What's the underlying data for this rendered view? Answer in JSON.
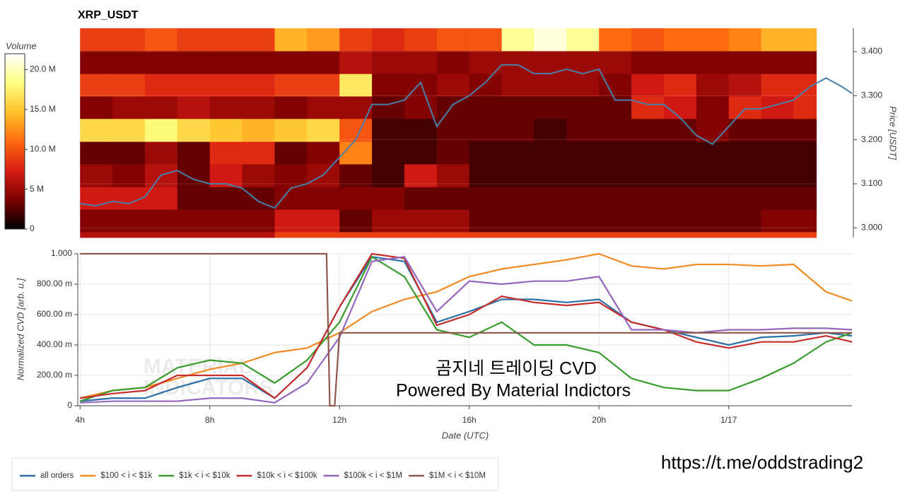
{
  "chart_data": [
    {
      "type": "heatmap",
      "title": "XRP_USDT",
      "colorbar_label": "Volume",
      "y_label": "Price [USDT]",
      "xlim": [
        3.93,
        27.8
      ],
      "ylim": [
        2.978,
        3.453
      ],
      "yticks": [
        {
          "value": 3.0,
          "label": "3.000"
        },
        {
          "value": 3.1,
          "label": "3.100"
        },
        {
          "value": 3.2,
          "label": "3.200"
        },
        {
          "value": 3.3,
          "label": "3.300"
        },
        {
          "value": 3.4,
          "label": "3.400"
        }
      ],
      "clim": [
        0,
        22
      ],
      "cticks": [
        0,
        {
          "value": 5,
          "label": "5 M"
        },
        {
          "value": 10,
          "label": "10.0 M"
        },
        {
          "value": 15,
          "label": "15.0 M"
        },
        {
          "value": 20,
          "label": "20.0 M"
        }
      ],
      "colormap": [
        "#000000",
        "#7a0000",
        "#d81c14",
        "#ff6a10",
        "#ffc22a",
        "#ffff80",
        "#ffffff"
      ],
      "time_edges": [
        4,
        5,
        6,
        7,
        8,
        9,
        10,
        11,
        12,
        13,
        14,
        15,
        16,
        17,
        18,
        19,
        20,
        21,
        22,
        23,
        24,
        25,
        26,
        26.7
      ],
      "price_edges": [
        2.978,
        2.991,
        3.042,
        3.093,
        3.145,
        3.196,
        3.248,
        3.299,
        3.35,
        3.402,
        3.453
      ],
      "volume": [
        [
          6,
          6,
          6,
          6,
          6,
          6,
          9,
          9,
          9,
          9,
          9,
          9,
          9,
          9,
          9,
          9,
          9,
          9,
          9,
          9,
          9,
          9,
          9
        ],
        [
          4,
          4,
          4,
          4,
          4,
          4,
          7,
          7,
          3,
          5,
          5,
          5,
          3,
          3,
          3,
          3,
          3,
          3,
          3,
          3,
          3,
          4,
          4
        ],
        [
          7,
          7,
          7,
          3,
          3,
          3,
          4,
          4,
          4,
          4,
          3,
          3,
          3,
          3,
          3,
          3,
          3,
          3,
          3,
          3,
          3,
          3,
          3
        ],
        [
          5,
          4,
          6,
          3,
          7,
          5,
          4,
          5,
          3,
          2,
          7,
          5,
          2,
          2,
          2,
          2,
          2,
          2,
          2,
          2,
          2,
          2,
          2
        ],
        [
          3,
          3,
          5,
          3,
          8,
          8,
          3,
          4,
          12,
          2,
          2,
          3,
          2,
          2,
          2,
          2,
          2,
          2,
          2,
          2,
          2,
          2,
          2
        ],
        [
          16,
          16,
          18,
          16,
          15,
          14,
          15,
          16,
          10,
          2,
          2,
          3,
          3,
          3,
          2,
          3,
          3,
          3,
          3,
          4,
          3,
          3,
          3
        ],
        [
          4,
          5,
          5,
          6,
          5,
          5,
          4,
          5,
          5,
          3,
          4,
          3,
          3,
          3,
          3,
          3,
          3,
          8,
          7,
          4,
          8,
          7,
          8
        ],
        [
          9,
          9,
          8,
          8,
          8,
          8,
          9,
          9,
          17,
          4,
          4,
          5,
          4,
          5,
          5,
          5,
          4,
          7,
          8,
          5,
          6,
          8,
          8
        ],
        [
          4,
          4,
          4,
          4,
          4,
          4,
          4,
          4,
          6,
          5,
          5,
          4,
          5,
          5,
          5,
          5,
          5,
          4,
          4,
          4,
          4,
          4,
          4
        ],
        [
          9,
          9,
          10,
          9,
          9,
          9,
          14,
          13,
          9,
          8,
          9,
          10,
          10,
          19,
          21,
          19,
          11,
          10,
          11,
          11,
          12,
          14,
          14
        ]
      ],
      "price": {
        "color": "#4a7fa8",
        "x": [
          4,
          4.5,
          5,
          5.5,
          6,
          6.5,
          7,
          7.5,
          8,
          8.5,
          9,
          9.5,
          10,
          10.5,
          11,
          11.5,
          12,
          12.5,
          13,
          13.5,
          14,
          14.5,
          15,
          15.5,
          16,
          16.5,
          17,
          17.5,
          18,
          18.5,
          19,
          19.5,
          20,
          20.5,
          21,
          21.5,
          22,
          22.5,
          23,
          23.5,
          24,
          24.5,
          25,
          25.5,
          26,
          26.5,
          27,
          27.5,
          27.8
        ],
        "values": [
          3.055,
          3.05,
          3.06,
          3.055,
          3.07,
          3.12,
          3.13,
          3.11,
          3.1,
          3.1,
          3.09,
          3.06,
          3.045,
          3.09,
          3.1,
          3.12,
          3.16,
          3.2,
          3.28,
          3.28,
          3.29,
          3.33,
          3.23,
          3.28,
          3.3,
          3.33,
          3.37,
          3.37,
          3.35,
          3.35,
          3.36,
          3.35,
          3.36,
          3.29,
          3.29,
          3.28,
          3.28,
          3.25,
          3.21,
          3.19,
          3.23,
          3.27,
          3.27,
          3.28,
          3.29,
          3.32,
          3.34,
          3.32,
          3.305
        ]
      }
    },
    {
      "type": "line",
      "y_label": "Normalized CVD [arb. u.]",
      "x_label": "Date (UTC)",
      "xlim": [
        3.93,
        27.8
      ],
      "ylim": [
        0,
        1.0
      ],
      "xticks": [
        {
          "value": 4,
          "label": "4h"
        },
        {
          "value": 8,
          "label": "8h"
        },
        {
          "value": 12,
          "label": "12h"
        },
        {
          "value": 16,
          "label": "16h"
        },
        {
          "value": 20,
          "label": "20h"
        },
        {
          "value": 24,
          "label": "1/17"
        }
      ],
      "yticks": [
        0,
        {
          "value": 0.2,
          "label": "200.00 m"
        },
        {
          "value": 0.4,
          "label": "400.00 m"
        },
        {
          "value": 0.6,
          "label": "600.00 m"
        },
        {
          "value": 0.8,
          "label": "800.00 m"
        },
        {
          "value": 1.0,
          "label": "1.000"
        }
      ],
      "grid": true,
      "x": [
        4,
        5,
        6,
        7,
        8,
        9,
        10,
        11,
        12,
        13,
        14,
        15,
        16,
        17,
        18,
        19,
        20,
        21,
        22,
        23,
        24,
        25,
        26,
        27,
        27.8
      ],
      "series": [
        {
          "name": "all orders",
          "color": "#2e6fa7",
          "values": [
            0.03,
            0.05,
            0.05,
            0.12,
            0.18,
            0.18,
            0.05,
            0.25,
            0.65,
            0.98,
            0.95,
            0.55,
            0.62,
            0.7,
            0.7,
            0.68,
            0.7,
            0.55,
            0.5,
            0.45,
            0.4,
            0.45,
            0.46,
            0.48,
            0.46
          ]
        },
        {
          "name": "$100 < i < $1k",
          "color": "#f08a24",
          "values": [
            0.05,
            0.1,
            0.12,
            0.18,
            0.24,
            0.28,
            0.35,
            0.38,
            0.48,
            0.62,
            0.7,
            0.75,
            0.85,
            0.9,
            0.93,
            0.96,
            1.0,
            0.92,
            0.9,
            0.93,
            0.93,
            0.92,
            0.93,
            0.75,
            0.69
          ]
        },
        {
          "name": "$1k < i < $10k",
          "color": "#3a9c2f",
          "values": [
            0.03,
            0.1,
            0.12,
            0.25,
            0.3,
            0.28,
            0.15,
            0.3,
            0.55,
            0.98,
            0.85,
            0.5,
            0.45,
            0.55,
            0.4,
            0.4,
            0.35,
            0.18,
            0.12,
            0.1,
            0.1,
            0.18,
            0.28,
            0.42,
            0.48
          ]
        },
        {
          "name": "$10k < i < $100k",
          "color": "#c62d2d",
          "values": [
            0.05,
            0.08,
            0.1,
            0.2,
            0.2,
            0.2,
            0.05,
            0.25,
            0.65,
            1.0,
            0.97,
            0.53,
            0.6,
            0.72,
            0.68,
            0.66,
            0.68,
            0.55,
            0.5,
            0.42,
            0.38,
            0.42,
            0.42,
            0.46,
            0.42
          ]
        },
        {
          "name": "$100k < i < $1M",
          "color": "#9467bd",
          "values": [
            0.02,
            0.03,
            0.03,
            0.03,
            0.05,
            0.05,
            0.02,
            0.15,
            0.45,
            0.95,
            0.98,
            0.62,
            0.82,
            0.8,
            0.82,
            0.82,
            0.85,
            0.5,
            0.5,
            0.48,
            0.5,
            0.5,
            0.51,
            0.51,
            0.5
          ]
        },
        {
          "name": "$1M < i < $10M",
          "color": "#8c564b",
          "x": [
            4,
            11.6,
            11.7,
            11.85,
            12,
            27.8
          ],
          "values": [
            1.0,
            1.0,
            0,
            0,
            0.48,
            0.48
          ]
        }
      ]
    }
  ],
  "watermark_logo": [
    "MATERIAL",
    "INDICATORS"
  ],
  "watermark": [
    "곰지네 트레이딩 CVD",
    "Powered By Material Indictors"
  ],
  "link": "https://t.me/oddstrading2"
}
